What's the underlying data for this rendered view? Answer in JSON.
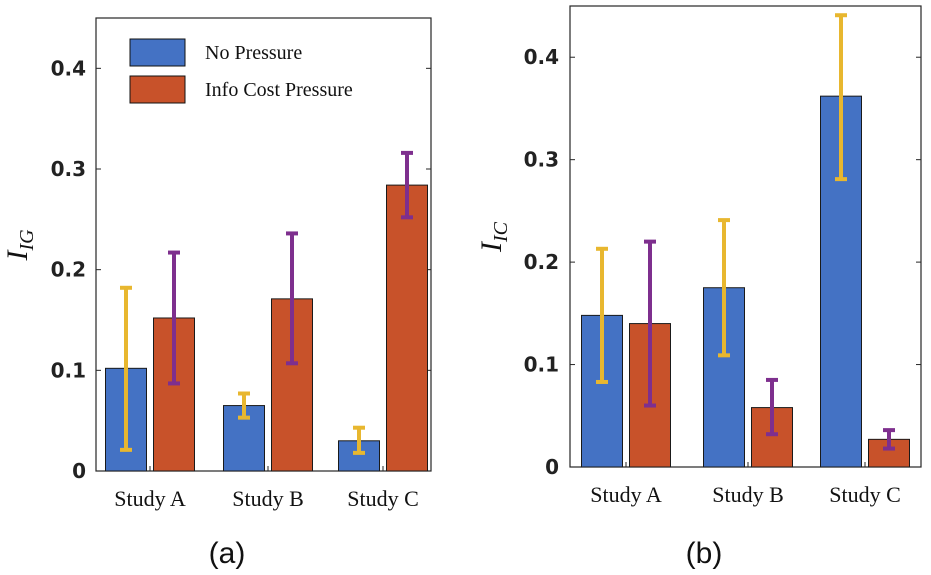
{
  "figure": {
    "colors": {
      "no_pressure": "#4472C4",
      "info_cost": "#C8522A",
      "err_no_pressure": "#E8B72F",
      "err_info_cost": "#7E2F8E"
    }
  },
  "chart_data": [
    {
      "type": "bar",
      "panel_label": "(a)",
      "ylabel": "I",
      "ylabel_sub": "IG",
      "ylim": [
        0,
        0.45
      ],
      "yticks": [
        0,
        0.1,
        0.2,
        0.3,
        0.4
      ],
      "ytick_labels": [
        "0",
        "0.1",
        "0.2",
        "0.3",
        "0.4"
      ],
      "categories": [
        "Study A",
        "Study B",
        "Study C"
      ],
      "legend": {
        "placement": "top-left",
        "entries": [
          "No Pressure",
          "Info Cost Pressure"
        ]
      },
      "series": [
        {
          "name": "No Pressure",
          "values": [
            0.102,
            0.065,
            0.03
          ],
          "err_low": [
            0.021,
            0.053,
            0.018
          ],
          "err_high": [
            0.182,
            0.077,
            0.043
          ]
        },
        {
          "name": "Info Cost Pressure",
          "values": [
            0.152,
            0.171,
            0.284
          ],
          "err_low": [
            0.087,
            0.107,
            0.252
          ],
          "err_high": [
            0.217,
            0.236,
            0.316
          ]
        }
      ]
    },
    {
      "type": "bar",
      "panel_label": "(b)",
      "ylabel": "I",
      "ylabel_sub": "IC",
      "ylim": [
        0,
        0.45
      ],
      "yticks": [
        0,
        0.1,
        0.2,
        0.3,
        0.4
      ],
      "ytick_labels": [
        "0",
        "0.1",
        "0.2",
        "0.3",
        "0.4"
      ],
      "categories": [
        "Study A",
        "Study B",
        "Study C"
      ],
      "legend": null,
      "series": [
        {
          "name": "No Pressure",
          "values": [
            0.148,
            0.175,
            0.362
          ],
          "err_low": [
            0.083,
            0.109,
            0.281
          ],
          "err_high": [
            0.213,
            0.241,
            0.441
          ]
        },
        {
          "name": "Info Cost Pressure",
          "values": [
            0.14,
            0.058,
            0.027
          ],
          "err_low": [
            0.06,
            0.032,
            0.018
          ],
          "err_high": [
            0.22,
            0.085,
            0.036
          ]
        }
      ]
    }
  ]
}
